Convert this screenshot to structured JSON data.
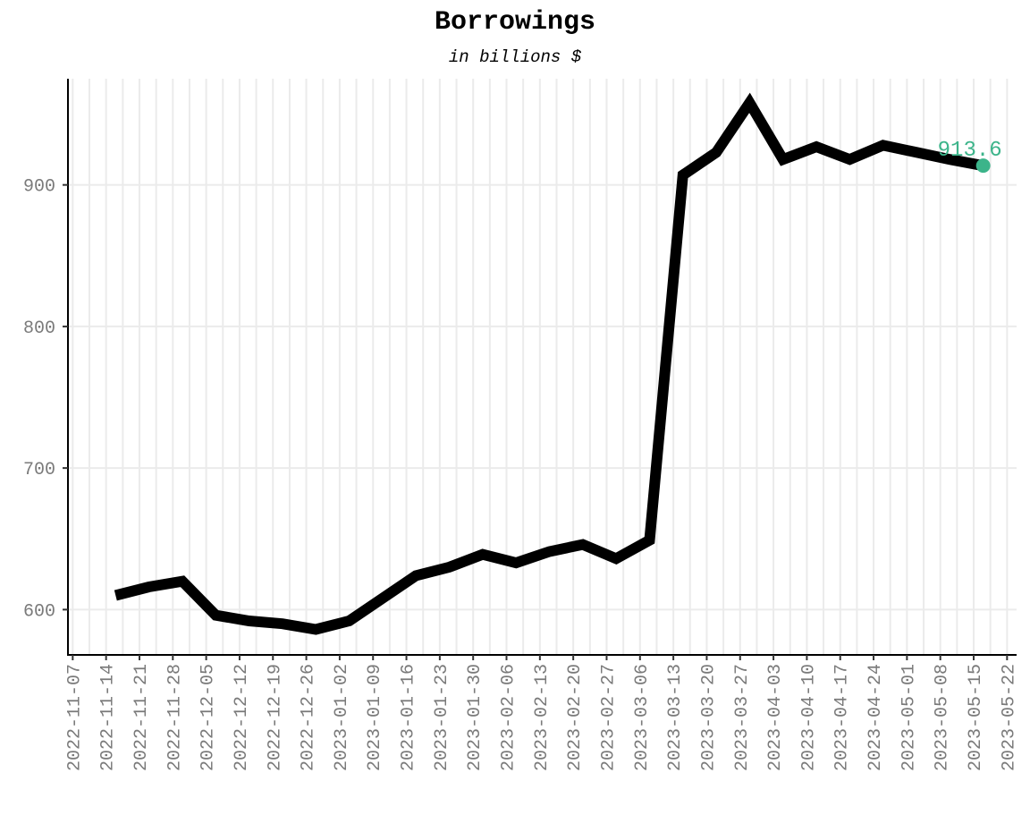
{
  "chart_data": {
    "type": "line",
    "title": "Borrowings",
    "subtitle": "in billions $",
    "xlabel": "",
    "ylabel": "",
    "x_ticks": [
      "2022-11-07",
      "2022-11-14",
      "2022-11-21",
      "2022-11-28",
      "2022-12-05",
      "2022-12-12",
      "2022-12-19",
      "2022-12-26",
      "2023-01-02",
      "2023-01-09",
      "2023-01-16",
      "2023-01-23",
      "2023-01-30",
      "2023-02-06",
      "2023-02-13",
      "2023-02-20",
      "2023-02-27",
      "2023-03-06",
      "2023-03-13",
      "2023-03-20",
      "2023-03-27",
      "2023-04-03",
      "2023-04-10",
      "2023-04-17",
      "2023-04-24",
      "2023-05-01",
      "2023-05-08",
      "2023-05-15",
      "2023-05-22"
    ],
    "y_ticks": [
      600,
      700,
      800,
      900
    ],
    "xlim": [
      "2022-11-06",
      "2023-05-24"
    ],
    "ylim": [
      568,
      975
    ],
    "grid": true,
    "line_color": "#000000",
    "highlight_color": "#3cb48a",
    "axis_text_color": "#7a7a7a",
    "grid_color": "#ebebeb",
    "series": [
      {
        "x": [
          "2022-11-16",
          "2022-11-23",
          "2022-11-30",
          "2022-12-07",
          "2022-12-14",
          "2022-12-21",
          "2022-12-28",
          "2023-01-04",
          "2023-01-11",
          "2023-01-18",
          "2023-01-25",
          "2023-02-01",
          "2023-02-08",
          "2023-02-15",
          "2023-02-22",
          "2023-03-01",
          "2023-03-08",
          "2023-03-15",
          "2023-03-22",
          "2023-03-29",
          "2023-04-05",
          "2023-04-12",
          "2023-04-19",
          "2023-04-26",
          "2023-05-03",
          "2023-05-10",
          "2023-05-17"
        ],
        "values": [
          610,
          616,
          620,
          596,
          592,
          590,
          586,
          592,
          608,
          624,
          630,
          639,
          633,
          641,
          646,
          636,
          649,
          907,
          923,
          958,
          918,
          927,
          918,
          928,
          923,
          918,
          913.6
        ]
      }
    ],
    "last_label": "913.6"
  }
}
